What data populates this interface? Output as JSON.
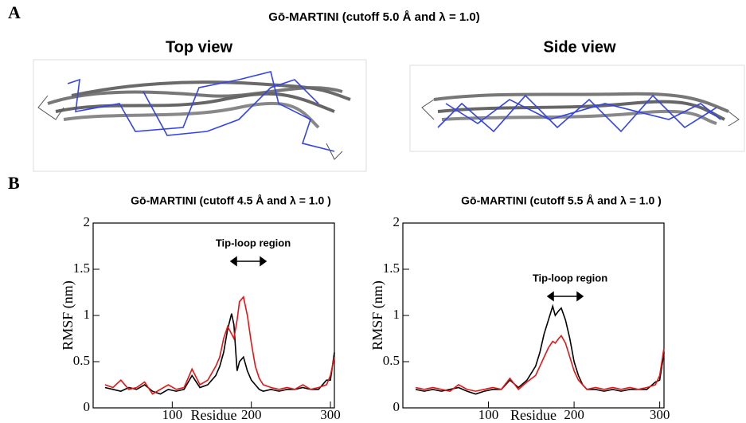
{
  "figure": {
    "panel_a_label": "A",
    "panel_b_label": "B",
    "title": "Gō-MARTINI (cutoff 5.0 Å and λ = 1.0)",
    "top_view": "Top view",
    "side_view": "Side view"
  },
  "chart_data": [
    {
      "type": "line",
      "title": "Gō-MARTINI  (cutoff 4.5 Å and λ = 1.0 )",
      "x_label": "Residue",
      "y_label": "RMSF (nm)",
      "annotation": "Tip-loop region",
      "x": [
        15,
        25,
        35,
        45,
        55,
        65,
        75,
        85,
        95,
        105,
        115,
        125,
        135,
        145,
        155,
        160,
        165,
        170,
        175,
        178,
        182,
        185,
        190,
        195,
        200,
        205,
        210,
        215,
        225,
        235,
        245,
        255,
        265,
        275,
        285,
        295,
        300,
        305
      ],
      "series": [
        {
          "color": "#000000",
          "values": [
            0.22,
            0.2,
            0.18,
            0.22,
            0.2,
            0.25,
            0.18,
            0.15,
            0.2,
            0.18,
            0.2,
            0.35,
            0.22,
            0.25,
            0.35,
            0.45,
            0.6,
            0.85,
            1.02,
            0.9,
            0.4,
            0.5,
            0.55,
            0.4,
            0.3,
            0.25,
            0.2,
            0.18,
            0.2,
            0.18,
            0.2,
            0.2,
            0.22,
            0.2,
            0.2,
            0.3,
            0.3,
            0.6
          ]
        },
        {
          "color": "#ee1111",
          "values": [
            0.25,
            0.22,
            0.3,
            0.2,
            0.22,
            0.28,
            0.15,
            0.2,
            0.25,
            0.2,
            0.22,
            0.42,
            0.25,
            0.3,
            0.45,
            0.55,
            0.75,
            0.88,
            0.8,
            0.75,
            0.95,
            1.15,
            1.2,
            1.0,
            0.7,
            0.45,
            0.32,
            0.25,
            0.22,
            0.2,
            0.22,
            0.2,
            0.25,
            0.2,
            0.22,
            0.25,
            0.35,
            0.55
          ]
        }
      ],
      "xlim": [
        0,
        305
      ],
      "ylim": [
        0,
        2
      ],
      "xticks": [
        100,
        200,
        300
      ],
      "yticks": [
        0,
        0.5,
        1,
        1.5,
        2
      ]
    },
    {
      "type": "line",
      "title": "Gō-MARTINI  (cutoff 5.5 Å and λ = 1.0 )",
      "x_label": "Residue",
      "y_label": "RMSF (nm)",
      "annotation": "Tip-loop region",
      "x": [
        15,
        25,
        35,
        45,
        55,
        65,
        75,
        85,
        95,
        105,
        115,
        125,
        135,
        145,
        155,
        160,
        165,
        170,
        175,
        178,
        182,
        185,
        190,
        195,
        200,
        205,
        210,
        215,
        225,
        235,
        245,
        255,
        265,
        275,
        285,
        295,
        300,
        305
      ],
      "series": [
        {
          "color": "#000000",
          "values": [
            0.2,
            0.18,
            0.2,
            0.18,
            0.2,
            0.22,
            0.18,
            0.15,
            0.18,
            0.2,
            0.2,
            0.3,
            0.22,
            0.3,
            0.45,
            0.6,
            0.8,
            0.95,
            1.1,
            1.0,
            1.05,
            1.08,
            0.95,
            0.75,
            0.5,
            0.35,
            0.25,
            0.2,
            0.2,
            0.18,
            0.2,
            0.18,
            0.2,
            0.2,
            0.2,
            0.28,
            0.3,
            0.6
          ]
        },
        {
          "color": "#ee1111",
          "values": [
            0.22,
            0.2,
            0.22,
            0.2,
            0.18,
            0.25,
            0.2,
            0.18,
            0.2,
            0.22,
            0.2,
            0.32,
            0.2,
            0.28,
            0.35,
            0.45,
            0.55,
            0.65,
            0.72,
            0.7,
            0.75,
            0.78,
            0.7,
            0.55,
            0.4,
            0.3,
            0.25,
            0.2,
            0.22,
            0.2,
            0.22,
            0.2,
            0.22,
            0.2,
            0.22,
            0.25,
            0.35,
            0.65
          ]
        }
      ],
      "xlim": [
        0,
        305
      ],
      "ylim": [
        0,
        2
      ],
      "xticks": [
        100,
        200,
        300
      ],
      "yticks": [
        0,
        0.5,
        1,
        1.5,
        2
      ]
    }
  ]
}
